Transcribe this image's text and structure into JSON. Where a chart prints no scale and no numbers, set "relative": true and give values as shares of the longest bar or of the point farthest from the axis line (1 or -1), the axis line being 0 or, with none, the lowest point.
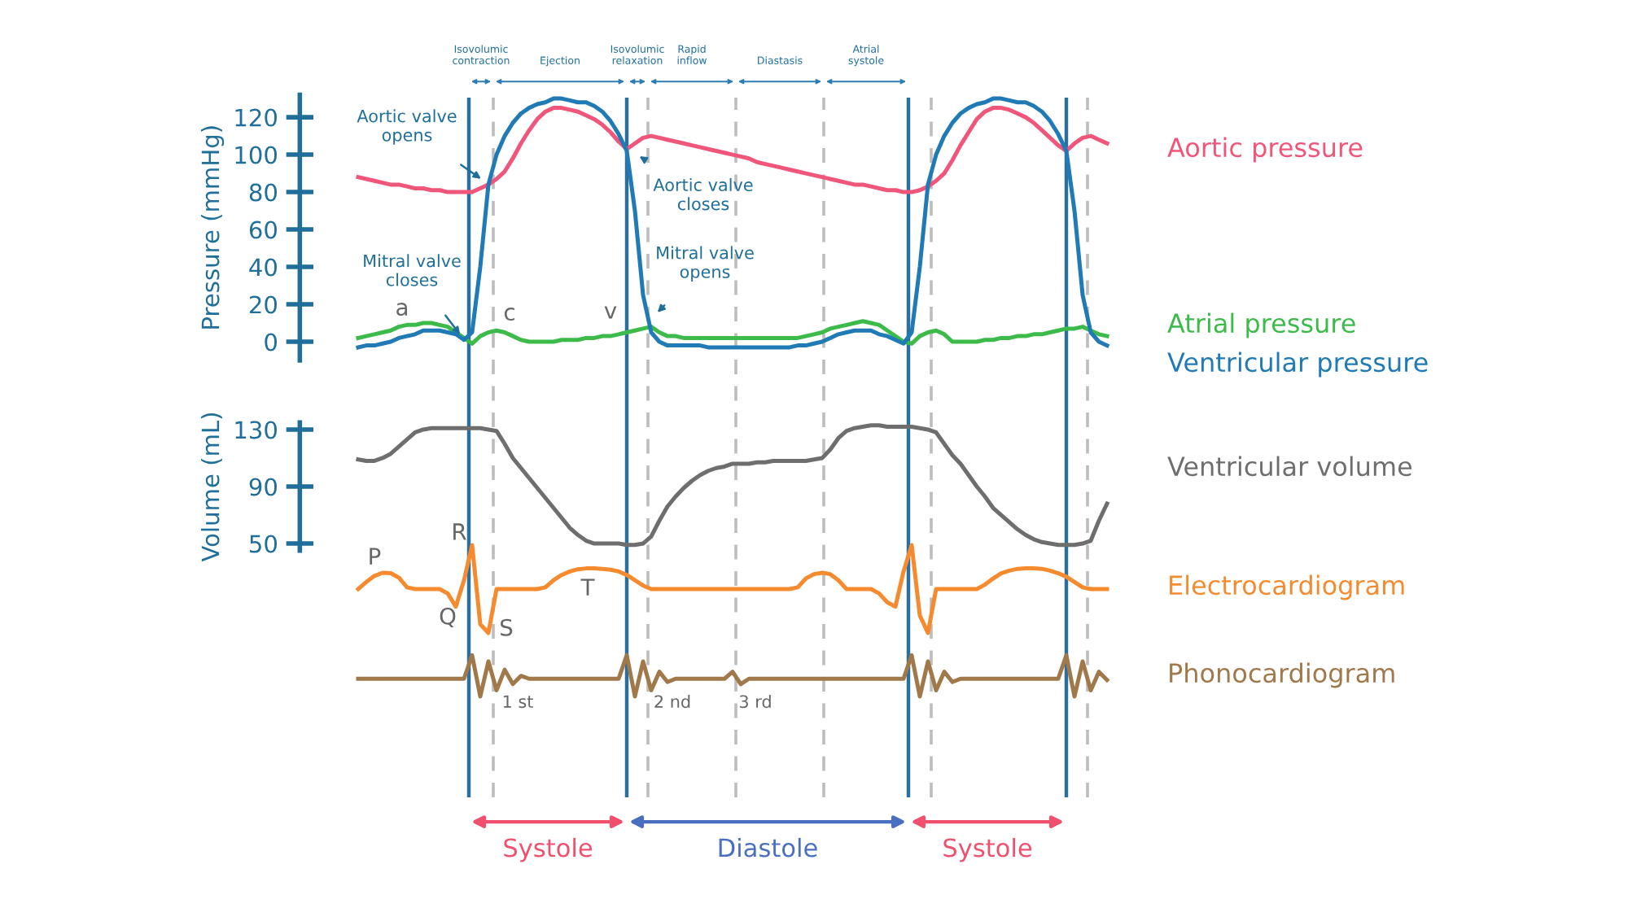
{
  "chart_data": [
    {
      "type": "line",
      "ylabel": "Pressure (mmHg)",
      "ylim": [
        -10,
        132
      ],
      "yticks": [
        0,
        20,
        40,
        60,
        80,
        100,
        120
      ],
      "tick_labels": "y",
      "categories": [
        null,
        null,
        null,
        null,
        null,
        null,
        null,
        null,
        null,
        null,
        null,
        null,
        null,
        null,
        null,
        null,
        null,
        null,
        null,
        null,
        null,
        null,
        null,
        null,
        null,
        null,
        null,
        null,
        null,
        null,
        null,
        null,
        null,
        null,
        null,
        null,
        null,
        null,
        null,
        null,
        null,
        null,
        null,
        null,
        null,
        null,
        null,
        null,
        null,
        null,
        null,
        null,
        null,
        null,
        null,
        null,
        null,
        null,
        null,
        null,
        null,
        null,
        null,
        null,
        null,
        null,
        null,
        null,
        null,
        null,
        null,
        null,
        null,
        null,
        null,
        null,
        null,
        null,
        null,
        null,
        null,
        null,
        null,
        null,
        null,
        null,
        null,
        null,
        null,
        null,
        null,
        null,
        null
      ],
      "series": [
        {
          "name": "Aortic pressure",
          "color": "#f0557a",
          "values": [
            88,
            87,
            86,
            85,
            84,
            84,
            83,
            82,
            82,
            81,
            81,
            80,
            80,
            80,
            80,
            82,
            84,
            87,
            91,
            98,
            106,
            113,
            119,
            123,
            125,
            125,
            124,
            123,
            121,
            119,
            116,
            112,
            107,
            103,
            106,
            109,
            110,
            109,
            108,
            107,
            106,
            105,
            104,
            103,
            102,
            101,
            100,
            99,
            98,
            96,
            95,
            94,
            93,
            92,
            91,
            90,
            89,
            88,
            87,
            86,
            85,
            84,
            84,
            83,
            82,
            81,
            81,
            80,
            80,
            81,
            83,
            86,
            90,
            97,
            105,
            112,
            119,
            123,
            125,
            125,
            124,
            122,
            120,
            117,
            113,
            109,
            105,
            102,
            106,
            109,
            110,
            108,
            106
          ]
        },
        {
          "name": "Atrial pressure",
          "color": "#3dbb4a",
          "values": [
            2,
            3,
            4,
            5,
            6,
            8,
            9,
            9,
            10,
            10,
            9,
            8,
            5,
            2,
            -1,
            3,
            5,
            6,
            5,
            3,
            1,
            0,
            0,
            0,
            0,
            1,
            1,
            1,
            2,
            2,
            3,
            3,
            4,
            5,
            6,
            7,
            8,
            5,
            3,
            3,
            2,
            2,
            2,
            2,
            2,
            2,
            2,
            2,
            2,
            2,
            2,
            2,
            2,
            2,
            2,
            3,
            4,
            5,
            7,
            8,
            9,
            10,
            11,
            10,
            9,
            6,
            3,
            0,
            -1,
            3,
            5,
            6,
            4,
            0,
            0,
            0,
            0,
            1,
            1,
            2,
            2,
            3,
            3,
            4,
            4,
            5,
            6,
            7,
            7,
            8,
            6,
            4,
            3
          ]
        },
        {
          "name": "Ventricular pressure",
          "color": "#1f7ab5",
          "values": [
            -3,
            -2,
            -2,
            -1,
            0,
            2,
            3,
            4,
            6,
            6,
            6,
            5,
            4,
            1,
            5,
            40,
            84,
            100,
            110,
            117,
            122,
            125,
            127,
            128,
            130,
            130,
            129,
            128,
            128,
            126,
            123,
            118,
            111,
            102,
            70,
            25,
            5,
            0,
            -2,
            -2,
            -2,
            -2,
            -2,
            -3,
            -3,
            -3,
            -3,
            -3,
            -3,
            -3,
            -3,
            -3,
            -3,
            -3,
            -2,
            -2,
            -1,
            0,
            2,
            4,
            5,
            6,
            6,
            6,
            4,
            3,
            1,
            -1,
            5,
            40,
            84,
            100,
            110,
            117,
            122,
            125,
            127,
            128,
            130,
            130,
            129,
            128,
            128,
            126,
            123,
            118,
            111,
            102,
            70,
            25,
            5,
            0,
            -2
          ]
        }
      ],
      "annotations": [
        "Aortic valve\nopens",
        "Aortic valve\ncloses",
        "Mitral valve\ncloses",
        "Mitral valve\nopens",
        "a",
        "c",
        "v",
        "Isovolumic\ncontraction",
        "Ejection",
        "Isovolumic\nrelaxation",
        "Rapid\ninflow",
        "Diastasis",
        "Atrial\nsystole"
      ]
    },
    {
      "type": "line",
      "ylabel": "Volume (mL)",
      "ylim": [
        45,
        135
      ],
      "yticks": [
        50,
        90,
        130
      ],
      "tick_labels": "y",
      "categories": [
        null,
        null,
        null,
        null,
        null,
        null,
        null,
        null,
        null,
        null,
        null,
        null,
        null,
        null,
        null,
        null,
        null,
        null,
        null,
        null,
        null,
        null,
        null,
        null,
        null,
        null,
        null,
        null,
        null,
        null,
        null,
        null,
        null,
        null,
        null,
        null,
        null,
        null,
        null,
        null,
        null,
        null,
        null,
        null,
        null,
        null,
        null,
        null,
        null,
        null,
        null,
        null,
        null,
        null,
        null,
        null,
        null,
        null,
        null,
        null,
        null,
        null,
        null,
        null,
        null,
        null,
        null,
        null,
        null,
        null,
        null,
        null,
        null,
        null,
        null,
        null,
        null,
        null,
        null,
        null,
        null,
        null,
        null,
        null,
        null,
        null,
        null,
        null,
        null,
        null,
        null,
        null,
        null
      ],
      "series": [
        {
          "name": "Ventricular volume",
          "color": "#6e6e6e",
          "values": [
            109,
            108,
            108,
            110,
            113,
            118,
            123,
            128,
            130,
            131,
            131,
            131,
            131,
            131,
            131,
            131,
            130,
            129,
            120,
            110,
            103,
            96,
            89,
            82,
            75,
            68,
            61,
            56,
            52,
            50,
            50,
            50,
            50,
            49,
            49,
            50,
            55,
            66,
            76,
            83,
            89,
            94,
            98,
            101,
            103,
            104,
            106,
            106,
            106,
            107,
            107,
            108,
            108,
            108,
            108,
            108,
            109,
            110,
            116,
            124,
            129,
            131,
            132,
            133,
            133,
            132,
            132,
            132,
            132,
            131,
            130,
            128,
            120,
            112,
            106,
            98,
            90,
            83,
            75,
            70,
            65,
            60,
            56,
            53,
            51,
            50,
            49,
            49,
            49,
            50,
            52,
            66,
            78
          ]
        }
      ]
    },
    {
      "type": "line",
      "relative": true,
      "tick_labels": false,
      "categories": [
        null,
        null,
        null,
        null,
        null,
        null,
        null,
        null,
        null,
        null,
        null,
        null,
        null,
        null,
        null,
        null,
        null,
        null,
        null,
        null,
        null,
        null,
        null,
        null,
        null,
        null,
        null,
        null,
        null,
        null,
        null,
        null,
        null,
        null,
        null,
        null,
        null,
        null,
        null,
        null,
        null,
        null,
        null,
        null,
        null,
        null,
        null,
        null,
        null,
        null,
        null,
        null,
        null,
        null,
        null,
        null,
        null,
        null,
        null,
        null,
        null,
        null,
        null,
        null,
        null,
        null,
        null,
        null,
        null,
        null,
        null,
        null,
        null,
        null,
        null,
        null,
        null,
        null,
        null,
        null,
        null,
        null,
        null,
        null,
        null,
        null,
        null,
        null,
        null,
        null,
        null,
        null,
        null
      ],
      "series": [
        {
          "name": "Electrocardiogram",
          "color": "#f58a2e",
          "values": [
            0.5,
            0.58,
            0.65,
            0.685,
            0.68,
            0.63,
            0.52,
            0.5,
            0.5,
            0.5,
            0.5,
            0.45,
            0.3,
            0.6,
            1.0,
            0.1,
            0,
            0.5,
            0.5,
            0.5,
            0.5,
            0.5,
            0.5,
            0.52,
            0.6,
            0.66,
            0.7,
            0.725,
            0.735,
            0.735,
            0.73,
            0.72,
            0.7,
            0.66,
            0.6,
            0.54,
            0.5,
            0.5,
            0.5,
            0.5,
            0.5,
            0.5,
            0.5,
            0.5,
            0.5,
            0.5,
            0.5,
            0.5,
            0.5,
            0.5,
            0.5,
            0.5,
            0.5,
            0.5,
            0.52,
            0.62,
            0.67,
            0.685,
            0.67,
            0.6,
            0.5,
            0.5,
            0.5,
            0.5,
            0.45,
            0.35,
            0.3,
            0.7,
            1.0,
            0.2,
            0,
            0.5,
            0.5,
            0.5,
            0.5,
            0.5,
            0.5,
            0.55,
            0.62,
            0.68,
            0.71,
            0.73,
            0.735,
            0.735,
            0.73,
            0.71,
            0.68,
            0.64,
            0.58,
            0.52,
            0.5,
            0.5,
            0.5
          ]
        }
      ],
      "annotations": [
        "P",
        "Q",
        "R",
        "S",
        "T"
      ]
    },
    {
      "type": "line",
      "relative": true,
      "tick_labels": false,
      "categories": [
        null,
        null,
        null,
        null,
        null,
        null,
        null,
        null,
        null,
        null,
        null,
        null,
        null,
        null,
        null,
        null,
        null,
        null,
        null,
        null,
        null,
        null,
        null,
        null,
        null,
        null,
        null,
        null,
        null,
        null,
        null,
        null,
        null,
        null,
        null,
        null,
        null,
        null,
        null,
        null,
        null,
        null,
        null,
        null,
        null,
        null,
        null,
        null,
        null,
        null,
        null,
        null,
        null,
        null,
        null,
        null,
        null,
        null,
        null,
        null,
        null,
        null,
        null,
        null,
        null,
        null,
        null,
        null,
        null,
        null,
        null,
        null,
        null,
        null,
        null,
        null,
        null,
        null,
        null,
        null,
        null,
        null,
        null,
        null,
        null,
        null,
        null,
        null,
        null,
        null,
        null,
        null,
        null
      ],
      "series": [
        {
          "name": "Phonocardiogram",
          "color": "#a0784a",
          "values": [
            0.43,
            0.43,
            0.43,
            0.43,
            0.43,
            0.43,
            0.43,
            0.43,
            0.43,
            0.43,
            0.43,
            0.43,
            0.43,
            0.43,
            1.0,
            0.0,
            0.85,
            0.15,
            0.65,
            0.3,
            0.5,
            0.43,
            0.43,
            0.43,
            0.43,
            0.43,
            0.43,
            0.43,
            0.43,
            0.43,
            0.43,
            0.43,
            0.43,
            1.0,
            0.0,
            0.85,
            0.15,
            0.6,
            0.35,
            0.43,
            0.43,
            0.43,
            0.43,
            0.43,
            0.43,
            0.43,
            0.6,
            0.3,
            0.43,
            0.43,
            0.43,
            0.43,
            0.43,
            0.43,
            0.43,
            0.43,
            0.43,
            0.43,
            0.43,
            0.43,
            0.43,
            0.43,
            0.43,
            0.43,
            0.43,
            0.43,
            0.43,
            0.43,
            1.0,
            0.0,
            0.85,
            0.15,
            0.6,
            0.35,
            0.43,
            0.43,
            0.43,
            0.43,
            0.43,
            0.43,
            0.43,
            0.43,
            0.43,
            0.43,
            0.43,
            0.43,
            0.43,
            1.0,
            0.0,
            0.85,
            0.15,
            0.6,
            0.4
          ]
        }
      ],
      "annotations": [
        "1 st",
        "2 nd",
        "3 rd",
        "Systole",
        "Diastole",
        "Systole"
      ]
    }
  ]
}
